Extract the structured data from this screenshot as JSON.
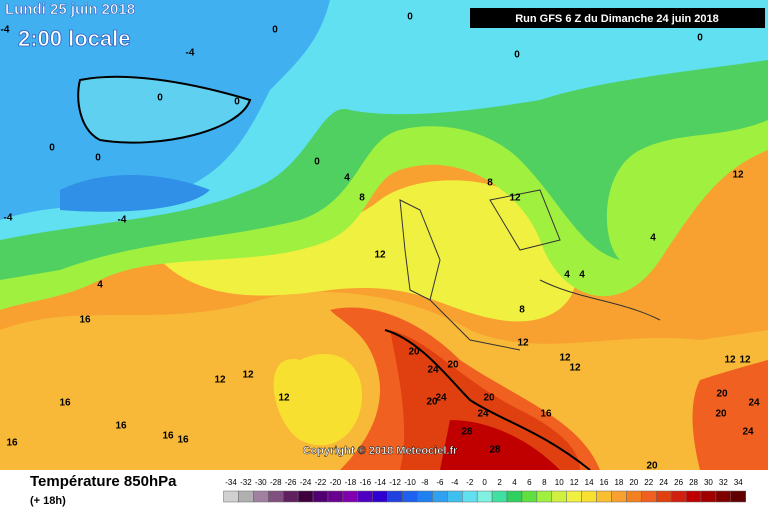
{
  "header": {
    "date": "Lundi 25 juin 2018",
    "time": "2:00 locale",
    "run": "Run GFS 6 Z du Dimanche 24 juin 2018",
    "copyright": "Copyright © 2018 Meteociel.fr"
  },
  "footer": {
    "title": "Température 850hPa",
    "subtitle": "(+ 18h)"
  },
  "map": {
    "contour_labels": [
      "-4",
      "0",
      "-4",
      "0",
      "0",
      "0",
      "0",
      "0",
      "0",
      "0",
      "0",
      "-4",
      "-4",
      "4",
      "8",
      "8",
      "12",
      "12",
      "4",
      "4",
      "4",
      "12",
      "4",
      "16",
      "8",
      "12",
      "20",
      "20",
      "24",
      "12",
      "12",
      "12",
      "12",
      "12",
      "12",
      "16",
      "12",
      "20",
      "24",
      "20",
      "16",
      "20",
      "24",
      "20",
      "24",
      "16",
      "16",
      "16",
      "16",
      "28",
      "28",
      "20",
      "24"
    ]
  },
  "scale": {
    "labels": [
      -34,
      -32,
      -30,
      -28,
      -26,
      -24,
      -22,
      -20,
      -18,
      -16,
      -14,
      -12,
      -10,
      -8,
      -6,
      -4,
      -2,
      0,
      2,
      4,
      6,
      8,
      10,
      12,
      14,
      16,
      18,
      20,
      22,
      24,
      26,
      28,
      30,
      32,
      34
    ],
    "colors": [
      "#d0d0d0",
      "#b0b0b0",
      "#a080a0",
      "#805080",
      "#602060",
      "#400040",
      "#500070",
      "#6a0090",
      "#8000b0",
      "#5000c0",
      "#3000d0",
      "#2040e0",
      "#2060f0",
      "#2080f0",
      "#30a0f0",
      "#40c0f0",
      "#60e0f0",
      "#80f0e0",
      "#40e0a0",
      "#30d060",
      "#60e040",
      "#a0f040",
      "#d0f040",
      "#f0f040",
      "#f8e030",
      "#f8c030",
      "#f8a030",
      "#f08020",
      "#f06020",
      "#e04010",
      "#d02010",
      "#c00000",
      "#a00000",
      "#800000",
      "#600000"
    ]
  }
}
